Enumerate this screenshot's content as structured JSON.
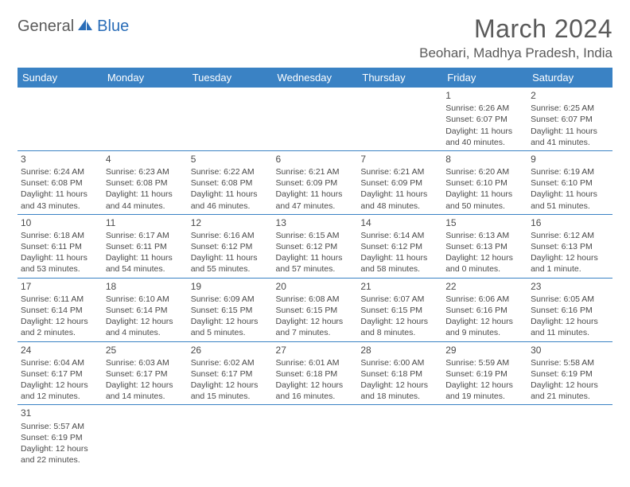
{
  "logo": {
    "part1": "General",
    "part2": "Blue"
  },
  "title": {
    "month": "March 2024",
    "location": "Beohari, Madhya Pradesh, India"
  },
  "colors": {
    "header_bg": "#3a82c4",
    "border": "#3a82c4",
    "text": "#4a4a4a",
    "logo_blue": "#2a6db8"
  },
  "day_headers": [
    "Sunday",
    "Monday",
    "Tuesday",
    "Wednesday",
    "Thursday",
    "Friday",
    "Saturday"
  ],
  "weeks": [
    [
      null,
      null,
      null,
      null,
      null,
      {
        "n": "1",
        "sr": "Sunrise: 6:26 AM",
        "ss": "Sunset: 6:07 PM",
        "dl": "Daylight: 11 hours and 40 minutes."
      },
      {
        "n": "2",
        "sr": "Sunrise: 6:25 AM",
        "ss": "Sunset: 6:07 PM",
        "dl": "Daylight: 11 hours and 41 minutes."
      }
    ],
    [
      {
        "n": "3",
        "sr": "Sunrise: 6:24 AM",
        "ss": "Sunset: 6:08 PM",
        "dl": "Daylight: 11 hours and 43 minutes."
      },
      {
        "n": "4",
        "sr": "Sunrise: 6:23 AM",
        "ss": "Sunset: 6:08 PM",
        "dl": "Daylight: 11 hours and 44 minutes."
      },
      {
        "n": "5",
        "sr": "Sunrise: 6:22 AM",
        "ss": "Sunset: 6:08 PM",
        "dl": "Daylight: 11 hours and 46 minutes."
      },
      {
        "n": "6",
        "sr": "Sunrise: 6:21 AM",
        "ss": "Sunset: 6:09 PM",
        "dl": "Daylight: 11 hours and 47 minutes."
      },
      {
        "n": "7",
        "sr": "Sunrise: 6:21 AM",
        "ss": "Sunset: 6:09 PM",
        "dl": "Daylight: 11 hours and 48 minutes."
      },
      {
        "n": "8",
        "sr": "Sunrise: 6:20 AM",
        "ss": "Sunset: 6:10 PM",
        "dl": "Daylight: 11 hours and 50 minutes."
      },
      {
        "n": "9",
        "sr": "Sunrise: 6:19 AM",
        "ss": "Sunset: 6:10 PM",
        "dl": "Daylight: 11 hours and 51 minutes."
      }
    ],
    [
      {
        "n": "10",
        "sr": "Sunrise: 6:18 AM",
        "ss": "Sunset: 6:11 PM",
        "dl": "Daylight: 11 hours and 53 minutes."
      },
      {
        "n": "11",
        "sr": "Sunrise: 6:17 AM",
        "ss": "Sunset: 6:11 PM",
        "dl": "Daylight: 11 hours and 54 minutes."
      },
      {
        "n": "12",
        "sr": "Sunrise: 6:16 AM",
        "ss": "Sunset: 6:12 PM",
        "dl": "Daylight: 11 hours and 55 minutes."
      },
      {
        "n": "13",
        "sr": "Sunrise: 6:15 AM",
        "ss": "Sunset: 6:12 PM",
        "dl": "Daylight: 11 hours and 57 minutes."
      },
      {
        "n": "14",
        "sr": "Sunrise: 6:14 AM",
        "ss": "Sunset: 6:12 PM",
        "dl": "Daylight: 11 hours and 58 minutes."
      },
      {
        "n": "15",
        "sr": "Sunrise: 6:13 AM",
        "ss": "Sunset: 6:13 PM",
        "dl": "Daylight: 12 hours and 0 minutes."
      },
      {
        "n": "16",
        "sr": "Sunrise: 6:12 AM",
        "ss": "Sunset: 6:13 PM",
        "dl": "Daylight: 12 hours and 1 minute."
      }
    ],
    [
      {
        "n": "17",
        "sr": "Sunrise: 6:11 AM",
        "ss": "Sunset: 6:14 PM",
        "dl": "Daylight: 12 hours and 2 minutes."
      },
      {
        "n": "18",
        "sr": "Sunrise: 6:10 AM",
        "ss": "Sunset: 6:14 PM",
        "dl": "Daylight: 12 hours and 4 minutes."
      },
      {
        "n": "19",
        "sr": "Sunrise: 6:09 AM",
        "ss": "Sunset: 6:15 PM",
        "dl": "Daylight: 12 hours and 5 minutes."
      },
      {
        "n": "20",
        "sr": "Sunrise: 6:08 AM",
        "ss": "Sunset: 6:15 PM",
        "dl": "Daylight: 12 hours and 7 minutes."
      },
      {
        "n": "21",
        "sr": "Sunrise: 6:07 AM",
        "ss": "Sunset: 6:15 PM",
        "dl": "Daylight: 12 hours and 8 minutes."
      },
      {
        "n": "22",
        "sr": "Sunrise: 6:06 AM",
        "ss": "Sunset: 6:16 PM",
        "dl": "Daylight: 12 hours and 9 minutes."
      },
      {
        "n": "23",
        "sr": "Sunrise: 6:05 AM",
        "ss": "Sunset: 6:16 PM",
        "dl": "Daylight: 12 hours and 11 minutes."
      }
    ],
    [
      {
        "n": "24",
        "sr": "Sunrise: 6:04 AM",
        "ss": "Sunset: 6:17 PM",
        "dl": "Daylight: 12 hours and 12 minutes."
      },
      {
        "n": "25",
        "sr": "Sunrise: 6:03 AM",
        "ss": "Sunset: 6:17 PM",
        "dl": "Daylight: 12 hours and 14 minutes."
      },
      {
        "n": "26",
        "sr": "Sunrise: 6:02 AM",
        "ss": "Sunset: 6:17 PM",
        "dl": "Daylight: 12 hours and 15 minutes."
      },
      {
        "n": "27",
        "sr": "Sunrise: 6:01 AM",
        "ss": "Sunset: 6:18 PM",
        "dl": "Daylight: 12 hours and 16 minutes."
      },
      {
        "n": "28",
        "sr": "Sunrise: 6:00 AM",
        "ss": "Sunset: 6:18 PM",
        "dl": "Daylight: 12 hours and 18 minutes."
      },
      {
        "n": "29",
        "sr": "Sunrise: 5:59 AM",
        "ss": "Sunset: 6:19 PM",
        "dl": "Daylight: 12 hours and 19 minutes."
      },
      {
        "n": "30",
        "sr": "Sunrise: 5:58 AM",
        "ss": "Sunset: 6:19 PM",
        "dl": "Daylight: 12 hours and 21 minutes."
      }
    ],
    [
      {
        "n": "31",
        "sr": "Sunrise: 5:57 AM",
        "ss": "Sunset: 6:19 PM",
        "dl": "Daylight: 12 hours and 22 minutes."
      },
      null,
      null,
      null,
      null,
      null,
      null
    ]
  ]
}
